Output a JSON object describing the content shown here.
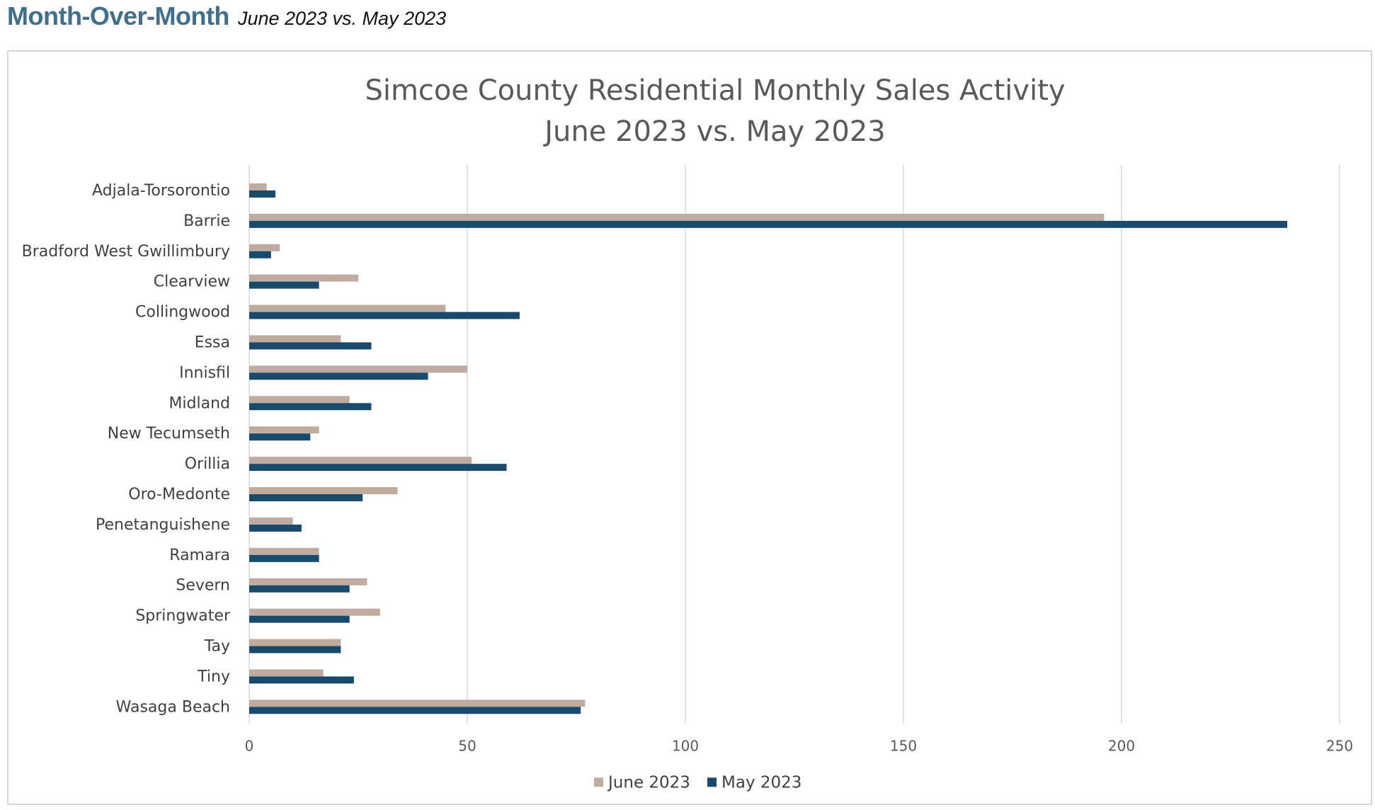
{
  "header": {
    "title": "Month-Over-Month",
    "subtitle": "June 2023 vs. May 2023"
  },
  "chart_data": {
    "type": "bar",
    "orientation": "horizontal",
    "title": [
      "Simcoe County Residential Monthly Sales Activity",
      "June 2023 vs. May 2023"
    ],
    "categories": [
      "Adjala-Torsorontio",
      "Barrie",
      "Bradford West Gwillimbury",
      "Clearview",
      "Collingwood",
      "Essa",
      "Innisfil",
      "Midland",
      "New Tecumseth",
      "Orillia",
      "Oro-Medonte",
      "Penetanguishene",
      "Ramara",
      "Severn",
      "Springwater",
      "Tay",
      "Tiny",
      "Wasaga Beach"
    ],
    "series": [
      {
        "name": "June 2023",
        "color": "#bfaba0",
        "values": [
          4,
          196,
          7,
          25,
          45,
          21,
          50,
          23,
          16,
          51,
          34,
          10,
          16,
          27,
          30,
          21,
          17,
          77
        ]
      },
      {
        "name": "May 2023",
        "color": "#1a4a6b",
        "values": [
          6,
          238,
          5,
          16,
          62,
          28,
          41,
          28,
          14,
          59,
          26,
          12,
          16,
          23,
          23,
          21,
          24,
          76
        ]
      }
    ],
    "xlim": [
      0,
      250
    ],
    "xticks": [
      "0",
      "50",
      "100",
      "150",
      "200",
      "250"
    ],
    "xlabel": "",
    "ylabel": "",
    "grid": "vertical",
    "gridline_color": "#d9d9d9",
    "legend_position": "bottom"
  }
}
